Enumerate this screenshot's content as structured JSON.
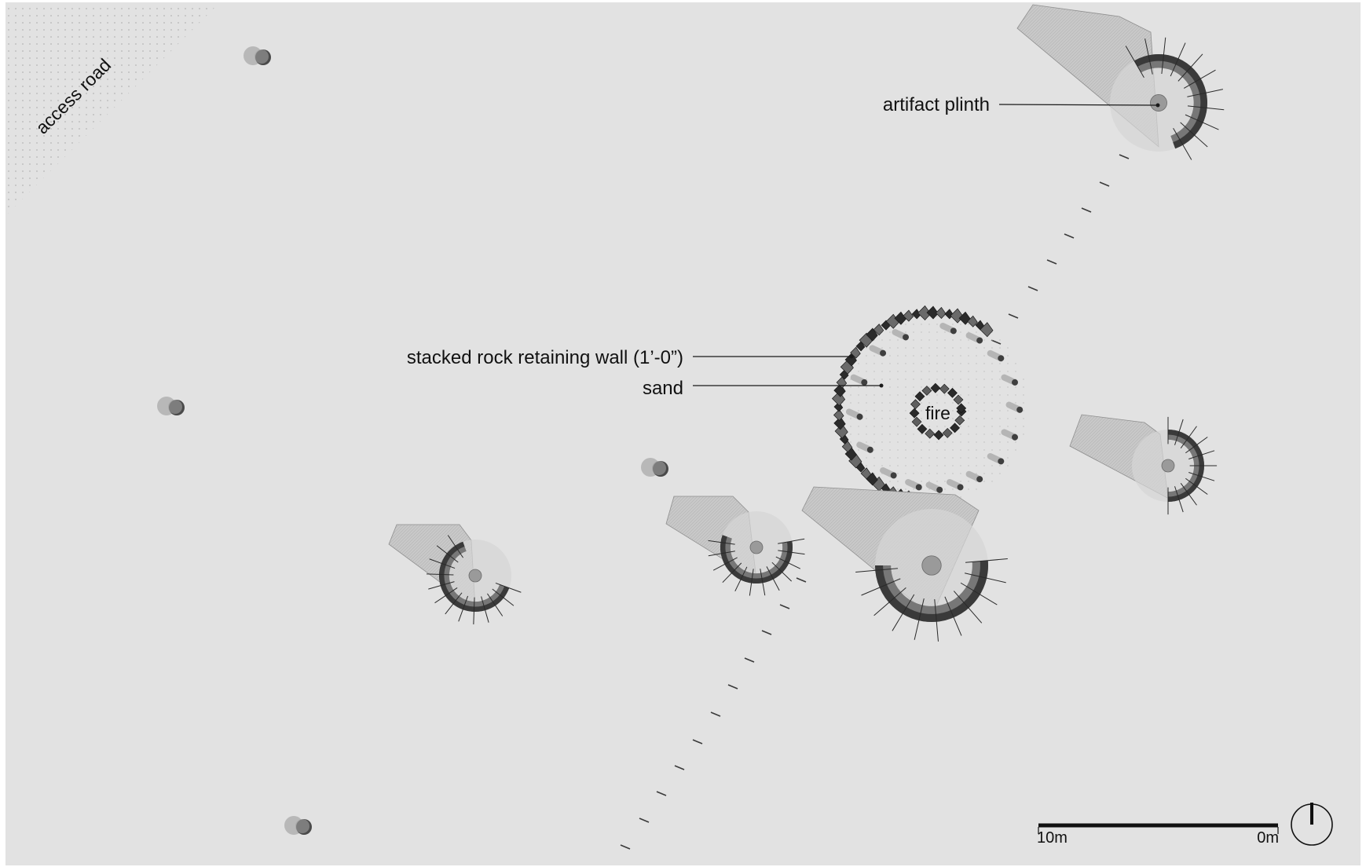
{
  "labels": {
    "access_road": "access road",
    "artifact_plinth": "artifact plinth",
    "retaining_wall": "stacked rock retaining wall (1’-0”)",
    "sand": "sand",
    "fire": "fire"
  },
  "scale_bar": {
    "left_label": "10m",
    "right_label": "0m"
  },
  "icons": {
    "north_arrow": "north-arrow-icon"
  },
  "colors": {
    "background": "#e2e2e2",
    "frame": "#ffffff",
    "line": "#1a1a1a",
    "shelter_light": "#c7c7c7",
    "shelter_dark": "#3c3c3c"
  }
}
